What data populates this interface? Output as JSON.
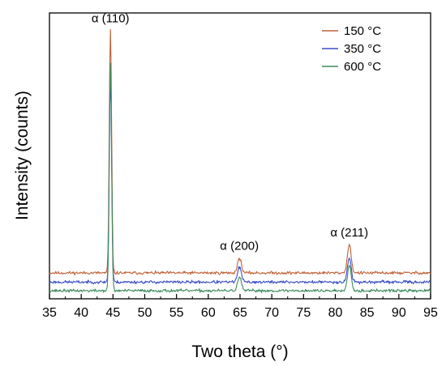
{
  "chart_data": {
    "type": "line",
    "title": "",
    "xlabel": "Two theta (°)",
    "ylabel": "Intensity (counts)",
    "xlim": [
      35,
      95
    ],
    "xticks": [
      35,
      40,
      45,
      50,
      55,
      60,
      65,
      70,
      75,
      80,
      85,
      90,
      95
    ],
    "y_ticks_shown": false,
    "grid": false,
    "legend": {
      "placement": "top-right"
    },
    "peak_annotations": [
      {
        "label": "α (110)",
        "x": 44.6
      },
      {
        "label": "α (200)",
        "x": 64.9
      },
      {
        "label": "α (211)",
        "x": 82.2
      }
    ],
    "peaks": [
      {
        "x": 44.6,
        "width": 0.18
      },
      {
        "x": 64.9,
        "width": 0.3
      },
      {
        "x": 82.2,
        "width": 0.3
      }
    ],
    "series": [
      {
        "name": "150 °C",
        "color": "#c0623a",
        "baseline": 0.96,
        "noise": 0.055,
        "peak_heights": [
          9.0,
          0.55,
          1.05
        ],
        "seed": 11
      },
      {
        "name": "350 °C",
        "color": "#3b4fc7",
        "baseline": 0.62,
        "noise": 0.055,
        "peak_heights": [
          7.6,
          0.55,
          0.9
        ],
        "seed": 23
      },
      {
        "name": "600 °C",
        "color": "#3d8c5e",
        "baseline": 0.3,
        "noise": 0.055,
        "peak_heights": [
          8.4,
          0.5,
          0.95
        ],
        "seed": 37
      }
    ]
  }
}
